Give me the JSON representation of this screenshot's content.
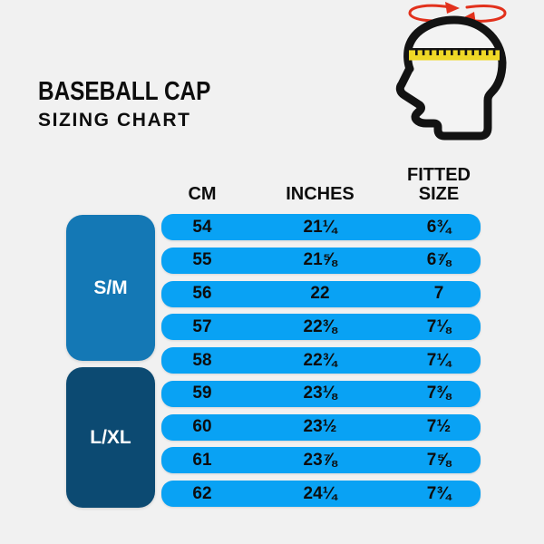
{
  "title": {
    "line1": "BASEBALL CAP",
    "line2": "SIZING CHART"
  },
  "head_icon": {
    "description": "head profile with measuring tape and rotation arrows"
  },
  "table": {
    "headers": {
      "cm": "CM",
      "inches": "INCHES",
      "fitted_line1": "FITTED",
      "fitted_line2": "SIZE"
    },
    "groups": [
      {
        "label": "S/M",
        "row_span": 5
      },
      {
        "label": "L/XL",
        "row_span": 4
      }
    ],
    "rows": [
      {
        "cm": "54",
        "inches": "21¼",
        "fitted": "6¾"
      },
      {
        "cm": "55",
        "inches": "21⅝",
        "fitted": "6⅞"
      },
      {
        "cm": "56",
        "inches": "22",
        "fitted": "7"
      },
      {
        "cm": "57",
        "inches": "22⅜",
        "fitted": "7⅛"
      },
      {
        "cm": "58",
        "inches": "22¾",
        "fitted": "7¼"
      },
      {
        "cm": "59",
        "inches": "23⅛",
        "fitted": "7⅜"
      },
      {
        "cm": "60",
        "inches": "23½",
        "fitted": "7½"
      },
      {
        "cm": "61",
        "inches": "23⅞",
        "fitted": "7⅝"
      },
      {
        "cm": "62",
        "inches": "24¼",
        "fitted": "7¾"
      }
    ]
  },
  "chart_data": {
    "type": "table",
    "title": "BASEBALL CAP SIZING CHART",
    "columns": [
      "CM",
      "INCHES",
      "FITTED SIZE"
    ],
    "row_groups": [
      {
        "label": "S/M",
        "cm_range": [
          54,
          58
        ]
      },
      {
        "label": "L/XL",
        "cm_range": [
          59,
          62
        ]
      }
    ],
    "rows": [
      [
        54,
        "21¼",
        "6¾"
      ],
      [
        55,
        "21⅝",
        "6⅞"
      ],
      [
        56,
        "22",
        "7"
      ],
      [
        57,
        "22⅜",
        "7⅛"
      ],
      [
        58,
        "22¾",
        "7¼"
      ],
      [
        59,
        "23⅛",
        "7⅜"
      ],
      [
        60,
        "23½",
        "7½"
      ],
      [
        61,
        "23⅞",
        "7⅝"
      ],
      [
        62,
        "24¼",
        "7¾"
      ]
    ]
  },
  "colors": {
    "background": "#f1f1f1",
    "row_blue": "#09a2f4",
    "group_sm_blue": "#1478b5",
    "group_lxl_navy": "#0c4a72",
    "tape_yellow": "#efd826",
    "arrow_red": "#e2311c",
    "icon_black": "#131313",
    "text_black": "#0d0d0d",
    "group_text_white": "#ffffff"
  }
}
